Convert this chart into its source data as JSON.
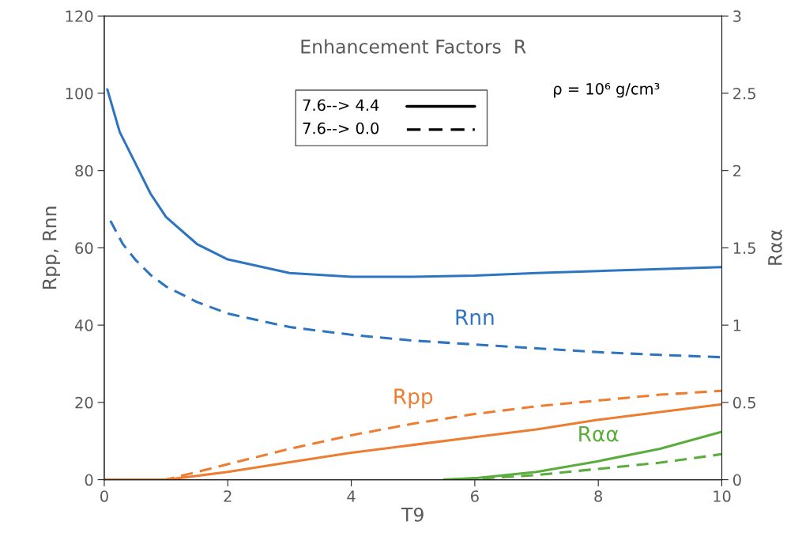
{
  "chart_data": {
    "type": "line",
    "title": "Enhancement Factors  R",
    "xlabel": "T9",
    "ylabel": "Rpp, Rnn",
    "y2label": "Rαα",
    "xlim": [
      0,
      10
    ],
    "xticks": [
      0,
      2,
      4,
      6,
      8,
      10
    ],
    "ylim": [
      0,
      120
    ],
    "yticks": [
      0,
      20,
      40,
      60,
      80,
      100,
      120
    ],
    "y2lim": [
      0,
      3
    ],
    "y2ticks": [
      0,
      0.5,
      1,
      1.5,
      2,
      2.5,
      3
    ],
    "grid": false,
    "series": [
      {
        "color": "#2e75c0",
        "line_style": "solid",
        "x": [
          0.05,
          0.25,
          0.5,
          0.75,
          1,
          1.5,
          2,
          3,
          4,
          5,
          6,
          7,
          8,
          9,
          10
        ],
        "values": [
          101,
          90,
          82,
          74,
          68,
          61,
          57,
          53.5,
          52.5,
          52.5,
          52.8,
          53.5,
          54,
          54.5,
          55
        ]
      },
      {
        "name": "Rnn",
        "color": "#2e75c0",
        "line_style": "dashed",
        "x": [
          0.1,
          0.3,
          0.5,
          0.75,
          1,
          1.5,
          2,
          3,
          4,
          5,
          6,
          7,
          8,
          9,
          10
        ],
        "values": [
          67,
          61,
          57,
          53,
          50,
          46,
          43,
          39.5,
          37.5,
          36,
          35,
          34,
          33,
          32.3,
          31.7
        ]
      },
      {
        "color": "#ed7d31",
        "line_style": "solid",
        "x": [
          0,
          1,
          1.5,
          2,
          3,
          4,
          5,
          6,
          7,
          8,
          9,
          10
        ],
        "values": [
          0,
          0,
          1,
          2,
          4.5,
          7,
          9,
          11,
          13,
          15.5,
          17.5,
          19.5
        ]
      },
      {
        "name": "Rpp",
        "color": "#ed7d31",
        "line_style": "dashed",
        "x": [
          0,
          1,
          1.5,
          2,
          3,
          4,
          5,
          6,
          7,
          8,
          9,
          10
        ],
        "values": [
          0,
          0,
          2,
          4,
          8,
          11.5,
          14.5,
          17,
          19,
          20.5,
          22,
          23
        ]
      },
      {
        "name": "Rαα",
        "color": "#5aad3c",
        "line_style": "solid",
        "axis": "y2",
        "x": [
          5.5,
          6,
          7,
          8,
          9,
          10
        ],
        "values": [
          0,
          0.01,
          0.05,
          0.12,
          0.2,
          0.31
        ]
      },
      {
        "color": "#5aad3c",
        "line_style": "dashed",
        "axis": "y2",
        "x": [
          5.5,
          6,
          7,
          8,
          9,
          10
        ],
        "values": [
          0,
          0.005,
          0.03,
          0.07,
          0.11,
          0.165
        ]
      }
    ],
    "annotations": [
      "7.6--> 4.4",
      "7.6--> 0.0",
      "ρ = 10⁶ g/cm³"
    ]
  }
}
